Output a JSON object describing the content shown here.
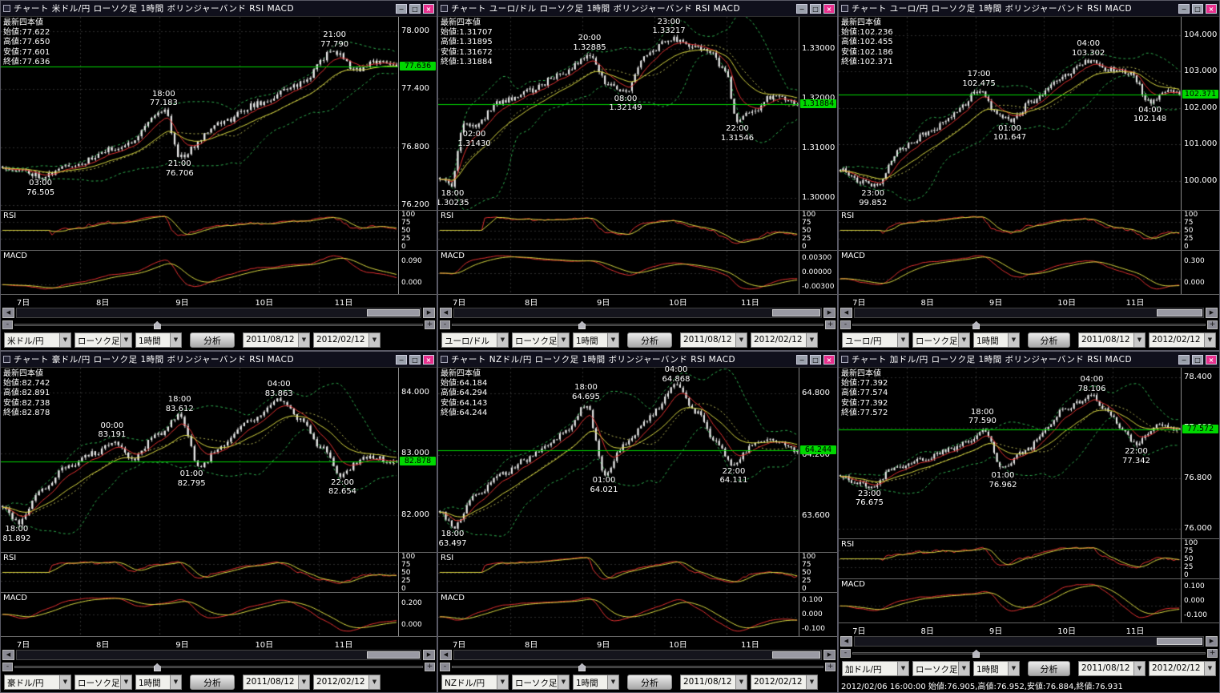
{
  "shared": {
    "window_buttons": {
      "minimize": "−",
      "maximize": "□",
      "close": "×"
    },
    "rsi_label": "RSI",
    "macd_label": "MACD",
    "rsi_scale": [
      "100",
      "75",
      "50",
      "25",
      "0"
    ],
    "x_labels": [
      "7日",
      "8日",
      "9日",
      "10日",
      "11日"
    ],
    "candle_type": "ローソク足",
    "timeframe": "1時間",
    "analyze_label": "分析",
    "date_from": "2011/08/12",
    "date_to": "2012/02/12",
    "dropdown_arrow": "▼",
    "scroll": {
      "left": "◀",
      "right": "▶"
    },
    "zoom": {
      "minus": "-",
      "plus": "+"
    },
    "colors": {
      "background": "#000000",
      "candle": "#e8e8e8",
      "bollinger": "#2fae4f",
      "bollinger_mid": "#b8b855",
      "ma_fast": "#e03030",
      "ma_slow": "#d8d840",
      "price_line": "#00d800",
      "grid": "#2e2e2e",
      "close_button": "#e8308e"
    }
  },
  "panels": [
    {
      "title": "チャート 米ドル/円 ローソク足 1時間 ボリンジャーバンド RSI MACD",
      "pair": "米ドル/円",
      "ohlc_lines": [
        "最新四本値",
        "始値:77.622",
        "高値:77.650",
        "安値:77.601",
        "終値:77.636"
      ],
      "current_price": "77.636",
      "y_labels": [
        "78.000",
        "77.400",
        "76.800",
        "76.200"
      ],
      "macd_scale": [
        "0.090",
        "0.000"
      ],
      "annotations": [
        {
          "time": "21:00",
          "price": "77.790",
          "x": 0.84,
          "pos": "above"
        },
        {
          "time": "18:00",
          "price": "77.183",
          "x": 0.41,
          "pos": "above"
        },
        {
          "time": "21:00",
          "price": "76.706",
          "x": 0.45,
          "pos": "below"
        },
        {
          "time": "03:00",
          "price": "76.505",
          "x": 0.1,
          "pos": "below"
        }
      ],
      "chart_data": {
        "type": "candlestick",
        "timeframe": "1時間",
        "indicators": [
          "ボリンジャーバンド",
          "RSI",
          "MACD"
        ],
        "yrange": [
          76.15,
          78.15
        ],
        "last": 77.636,
        "seed": 11,
        "anchors": [
          [
            0,
            76.6
          ],
          [
            0.05,
            76.55
          ],
          [
            0.1,
            76.505
          ],
          [
            0.18,
            76.62
          ],
          [
            0.3,
            76.8
          ],
          [
            0.41,
            77.183
          ],
          [
            0.45,
            76.706
          ],
          [
            0.55,
            77.05
          ],
          [
            0.65,
            77.25
          ],
          [
            0.75,
            77.45
          ],
          [
            0.84,
            77.79
          ],
          [
            0.9,
            77.6
          ],
          [
            0.96,
            77.7
          ],
          [
            1,
            77.636
          ]
        ]
      }
    },
    {
      "title": "チャート ユーロ/ドル ローソク足 1時間 ボリンジャーバンド RSI MACD",
      "pair": "ユーロ/ドル",
      "ohlc_lines": [
        "最新四本値",
        "始値:1.31707",
        "高値:1.31895",
        "安値:1.31672",
        "終値:1.31884"
      ],
      "current_price": "1.31884",
      "y_labels": [
        "1.33000",
        "1.32000",
        "1.31000",
        "1.30000"
      ],
      "macd_scale": [
        "0.00300",
        "0.00000",
        "-0.00300"
      ],
      "annotations": [
        {
          "time": "23:00",
          "price": "1.33217",
          "x": 0.64,
          "pos": "above"
        },
        {
          "time": "20:00",
          "price": "1.32885",
          "x": 0.42,
          "pos": "above"
        },
        {
          "time": "02:00",
          "price": "1.31430",
          "x": 0.1,
          "pos": "below"
        },
        {
          "time": "08:00",
          "price": "1.32149",
          "x": 0.52,
          "pos": "below"
        },
        {
          "time": "22:00",
          "price": "1.31546",
          "x": 0.83,
          "pos": "below"
        },
        {
          "time": "18:00",
          "price": "1.30235",
          "x": 0.04,
          "pos": "below"
        }
      ],
      "chart_data": {
        "type": "candlestick",
        "timeframe": "1時間",
        "indicators": [
          "ボリンジャーバンド",
          "RSI",
          "MACD"
        ],
        "yrange": [
          1.2975,
          1.3365
        ],
        "last": 1.31884,
        "seed": 22,
        "anchors": [
          [
            0,
            1.304
          ],
          [
            0.03,
            1.30235
          ],
          [
            0.07,
            1.315
          ],
          [
            0.1,
            1.3143
          ],
          [
            0.16,
            1.319
          ],
          [
            0.25,
            1.3215
          ],
          [
            0.34,
            1.325
          ],
          [
            0.42,
            1.32885
          ],
          [
            0.47,
            1.323
          ],
          [
            0.52,
            1.32149
          ],
          [
            0.58,
            1.329
          ],
          [
            0.64,
            1.33217
          ],
          [
            0.7,
            1.331
          ],
          [
            0.76,
            1.3295
          ],
          [
            0.8,
            1.325
          ],
          [
            0.83,
            1.31546
          ],
          [
            0.88,
            1.3175
          ],
          [
            0.93,
            1.3205
          ],
          [
            1,
            1.31884
          ]
        ]
      }
    },
    {
      "title": "チャート ユーロ/円 ローソク足 1時間 ボリンジャーバンド RSI MACD",
      "pair": "ユーロ/円",
      "ohlc_lines": [
        "最新四本値",
        "始値:102.236",
        "高値:102.455",
        "安値:102.186",
        "終値:102.371"
      ],
      "current_price": "102.371",
      "y_labels": [
        "104.000",
        "103.000",
        "102.000",
        "101.000",
        "100.000"
      ],
      "macd_scale": [
        "0.300",
        "0.000"
      ],
      "annotations": [
        {
          "time": "04:00",
          "price": "103.302",
          "x": 0.73,
          "pos": "above"
        },
        {
          "time": "17:00",
          "price": "102.475",
          "x": 0.41,
          "pos": "above"
        },
        {
          "time": "04:00",
          "price": "102.148",
          "x": 0.91,
          "pos": "below"
        },
        {
          "time": "01:00",
          "price": "101.647",
          "x": 0.5,
          "pos": "below"
        },
        {
          "time": "23:00",
          "price": "99.852",
          "x": 0.1,
          "pos": "below"
        }
      ],
      "chart_data": {
        "type": "candlestick",
        "timeframe": "1時間",
        "indicators": [
          "ボリンジャーバンド",
          "RSI",
          "MACD"
        ],
        "yrange": [
          99.2,
          104.5
        ],
        "last": 102.371,
        "seed": 33,
        "anchors": [
          [
            0,
            100.3
          ],
          [
            0.05,
            100.0
          ],
          [
            0.1,
            99.852
          ],
          [
            0.18,
            100.9
          ],
          [
            0.26,
            101.3
          ],
          [
            0.33,
            101.8
          ],
          [
            0.41,
            102.475
          ],
          [
            0.46,
            101.9
          ],
          [
            0.5,
            101.647
          ],
          [
            0.57,
            102.2
          ],
          [
            0.64,
            102.8
          ],
          [
            0.73,
            103.302
          ],
          [
            0.8,
            103.05
          ],
          [
            0.86,
            102.9
          ],
          [
            0.91,
            102.148
          ],
          [
            0.96,
            102.45
          ],
          [
            1,
            102.371
          ]
        ]
      }
    },
    {
      "title": "チャート 豪ドル/円 ローソク足 1時間 ボリンジャーバンド RSI MACD",
      "pair": "豪ドル/円",
      "ohlc_lines": [
        "最新四本値",
        "始値:82.742",
        "高値:82.891",
        "安値:82.738",
        "終値:82.878"
      ],
      "current_price": "82.878",
      "y_labels": [
        "84.000",
        "83.000",
        "82.000"
      ],
      "macd_scale": [
        "0.200",
        "0.000"
      ],
      "annotations": [
        {
          "time": "04:00",
          "price": "83.863",
          "x": 0.7,
          "pos": "above"
        },
        {
          "time": "18:00",
          "price": "83.612",
          "x": 0.45,
          "pos": "above"
        },
        {
          "time": "00:00",
          "price": "83.191",
          "x": 0.28,
          "pos": "above"
        },
        {
          "time": "01:00",
          "price": "82.795",
          "x": 0.48,
          "pos": "below"
        },
        {
          "time": "22:00",
          "price": "82.654",
          "x": 0.86,
          "pos": "below"
        },
        {
          "time": "18:00",
          "price": "81.892",
          "x": 0.04,
          "pos": "below"
        }
      ],
      "chart_data": {
        "type": "candlestick",
        "timeframe": "1時間",
        "indicators": [
          "ボリンジャーバンド",
          "RSI",
          "MACD"
        ],
        "yrange": [
          81.4,
          84.4
        ],
        "last": 82.878,
        "seed": 44,
        "anchors": [
          [
            0,
            82.15
          ],
          [
            0.04,
            81.892
          ],
          [
            0.1,
            82.45
          ],
          [
            0.17,
            82.8
          ],
          [
            0.23,
            83.0
          ],
          [
            0.28,
            83.191
          ],
          [
            0.33,
            82.9
          ],
          [
            0.39,
            83.3
          ],
          [
            0.45,
            83.612
          ],
          [
            0.5,
            82.795
          ],
          [
            0.56,
            83.15
          ],
          [
            0.63,
            83.55
          ],
          [
            0.7,
            83.863
          ],
          [
            0.76,
            83.55
          ],
          [
            0.81,
            83.1
          ],
          [
            0.86,
            82.654
          ],
          [
            0.92,
            82.95
          ],
          [
            1,
            82.878
          ]
        ]
      }
    },
    {
      "title": "チャート NZドル/円 ローソク足 1時間 ボリンジャーバンド RSI MACD",
      "pair": "NZドル/円",
      "ohlc_lines": [
        "最新四本値",
        "始値:64.184",
        "高値:64.294",
        "安値:64.143",
        "終値:64.244"
      ],
      "current_price": "64.244",
      "y_labels": [
        "64.800",
        "64.200",
        "63.600"
      ],
      "macd_scale": [
        "0.100",
        "0.000",
        "-0.100"
      ],
      "annotations": [
        {
          "time": "04:00",
          "price": "64.868",
          "x": 0.66,
          "pos": "above"
        },
        {
          "time": "18:00",
          "price": "64.695",
          "x": 0.41,
          "pos": "above"
        },
        {
          "time": "01:00",
          "price": "64.021",
          "x": 0.46,
          "pos": "below"
        },
        {
          "time": "22:00",
          "price": "64.111",
          "x": 0.82,
          "pos": "below"
        },
        {
          "time": "18:00",
          "price": "63.497",
          "x": 0.04,
          "pos": "below"
        }
      ],
      "chart_data": {
        "type": "candlestick",
        "timeframe": "1時間",
        "indicators": [
          "ボリンジャーバンド",
          "RSI",
          "MACD"
        ],
        "yrange": [
          63.25,
          65.05
        ],
        "last": 64.244,
        "seed": 55,
        "anchors": [
          [
            0,
            63.65
          ],
          [
            0.04,
            63.497
          ],
          [
            0.1,
            63.8
          ],
          [
            0.17,
            64.0
          ],
          [
            0.24,
            64.15
          ],
          [
            0.3,
            64.3
          ],
          [
            0.36,
            64.45
          ],
          [
            0.41,
            64.695
          ],
          [
            0.46,
            64.021
          ],
          [
            0.52,
            64.3
          ],
          [
            0.58,
            64.55
          ],
          [
            0.66,
            64.868
          ],
          [
            0.72,
            64.6
          ],
          [
            0.77,
            64.35
          ],
          [
            0.82,
            64.111
          ],
          [
            0.88,
            64.3
          ],
          [
            0.94,
            64.35
          ],
          [
            1,
            64.244
          ]
        ]
      }
    },
    {
      "title": "チャート 加ドル/円 ローソク足 1時間 ボリンジャーバンド RSI MACD",
      "pair": "加ドル/円",
      "ohlc_lines": [
        "最新四本値",
        "始値:77.392",
        "高値:77.574",
        "安値:77.392",
        "終値:77.572"
      ],
      "current_price": "77.572",
      "y_labels": [
        "78.400",
        "77.600",
        "76.800",
        "76.000"
      ],
      "macd_scale": [
        "0.100",
        "0.000",
        "-0.100"
      ],
      "status": "2012/02/06 16:00:00 始値:76.905,高値:76.952,安値:76.884,終値:76.931",
      "annotations": [
        {
          "time": "04:00",
          "price": "78.106",
          "x": 0.74,
          "pos": "above"
        },
        {
          "time": "18:00",
          "price": "77.590",
          "x": 0.42,
          "pos": "above"
        },
        {
          "time": "22:00",
          "price": "77.342",
          "x": 0.87,
          "pos": "below"
        },
        {
          "time": "01:00",
          "price": "76.962",
          "x": 0.48,
          "pos": "below"
        },
        {
          "time": "23:00",
          "price": "76.675",
          "x": 0.09,
          "pos": "below"
        }
      ],
      "chart_data": {
        "type": "candlestick",
        "timeframe": "1時間",
        "indicators": [
          "ボリンジャーバンド",
          "RSI",
          "MACD"
        ],
        "yrange": [
          75.85,
          78.55
        ],
        "last": 77.572,
        "seed": 66,
        "anchors": [
          [
            0,
            76.85
          ],
          [
            0.04,
            76.75
          ],
          [
            0.09,
            76.675
          ],
          [
            0.16,
            76.95
          ],
          [
            0.24,
            77.1
          ],
          [
            0.32,
            77.25
          ],
          [
            0.38,
            77.4
          ],
          [
            0.42,
            77.59
          ],
          [
            0.48,
            76.962
          ],
          [
            0.55,
            77.25
          ],
          [
            0.61,
            77.6
          ],
          [
            0.66,
            77.9
          ],
          [
            0.74,
            78.106
          ],
          [
            0.79,
            77.85
          ],
          [
            0.83,
            77.6
          ],
          [
            0.87,
            77.342
          ],
          [
            0.93,
            77.62
          ],
          [
            1,
            77.572
          ]
        ]
      }
    }
  ]
}
